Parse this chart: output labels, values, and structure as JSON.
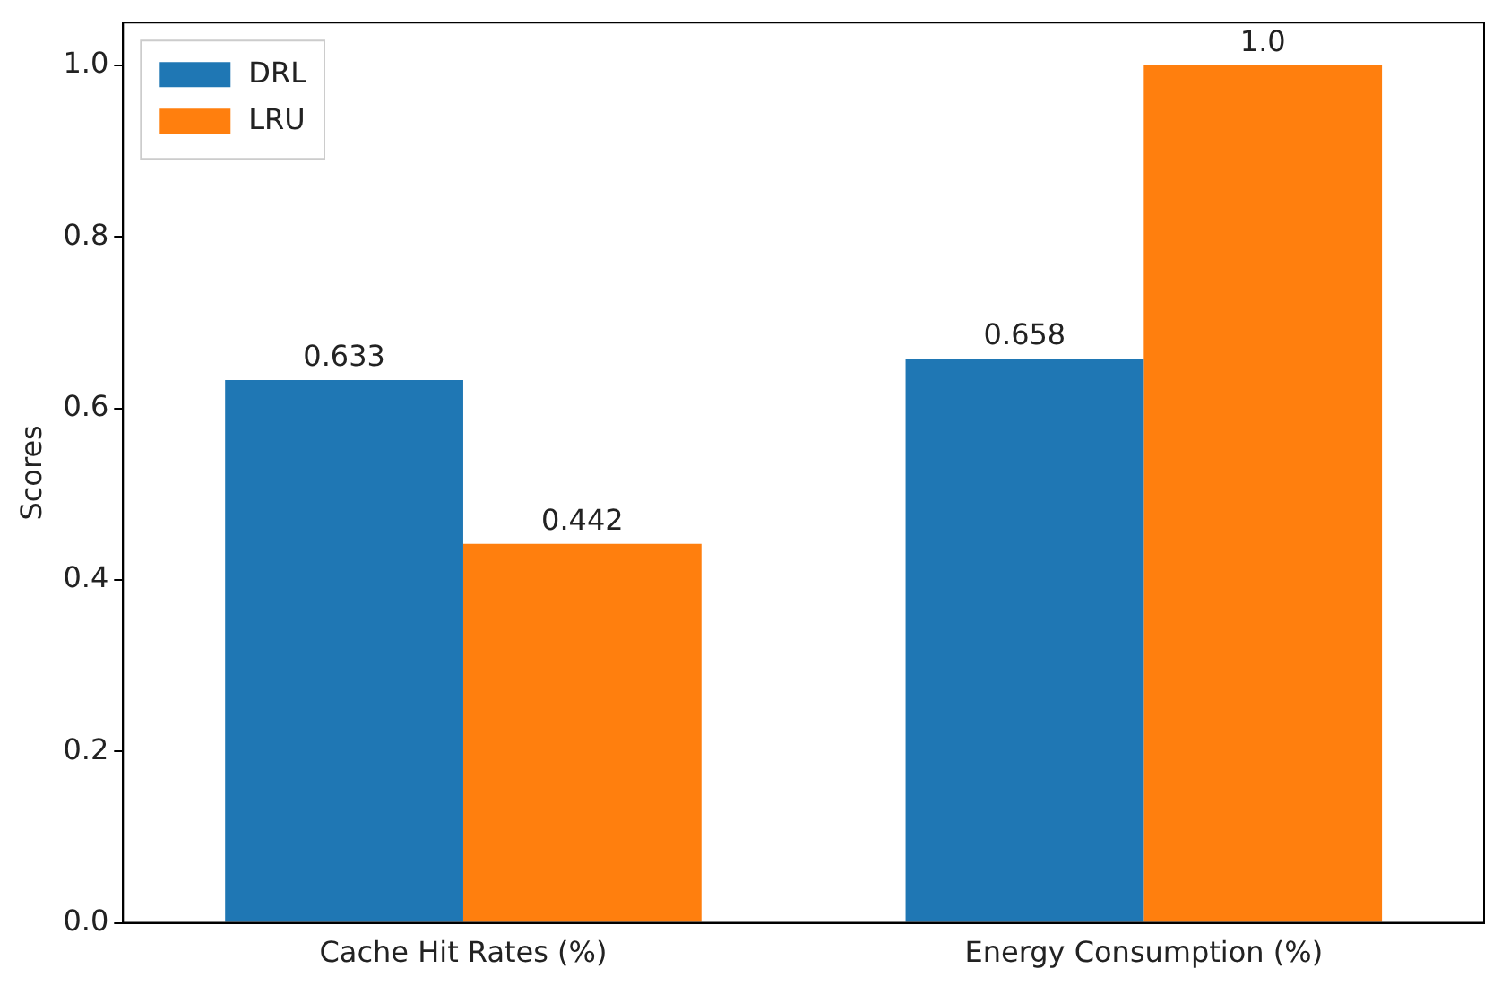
{
  "chart_data": {
    "type": "bar",
    "ylabel": "Scores",
    "categories": [
      "Cache Hit Rates (%)",
      "Energy Consumption (%)"
    ],
    "series": [
      {
        "name": "DRL",
        "color": "#1f77b4",
        "values": [
          0.633,
          0.658
        ],
        "value_labels": [
          "0.633",
          "0.658"
        ]
      },
      {
        "name": "LRU",
        "color": "#ff7f0e",
        "values": [
          0.442,
          1.0
        ],
        "value_labels": [
          "0.442",
          "1.0"
        ]
      }
    ],
    "ylim": [
      0,
      1.05
    ],
    "yticks": [
      {
        "value": 0,
        "label": "0.0"
      },
      {
        "value": 0.2,
        "label": "0.2"
      },
      {
        "value": 0.4,
        "label": "0.4"
      },
      {
        "value": 0.6,
        "label": "0.6"
      },
      {
        "value": 0.8,
        "label": "0.8"
      },
      {
        "value": 1.0,
        "label": "1.0"
      }
    ],
    "grid": false,
    "legend": "top left"
  }
}
